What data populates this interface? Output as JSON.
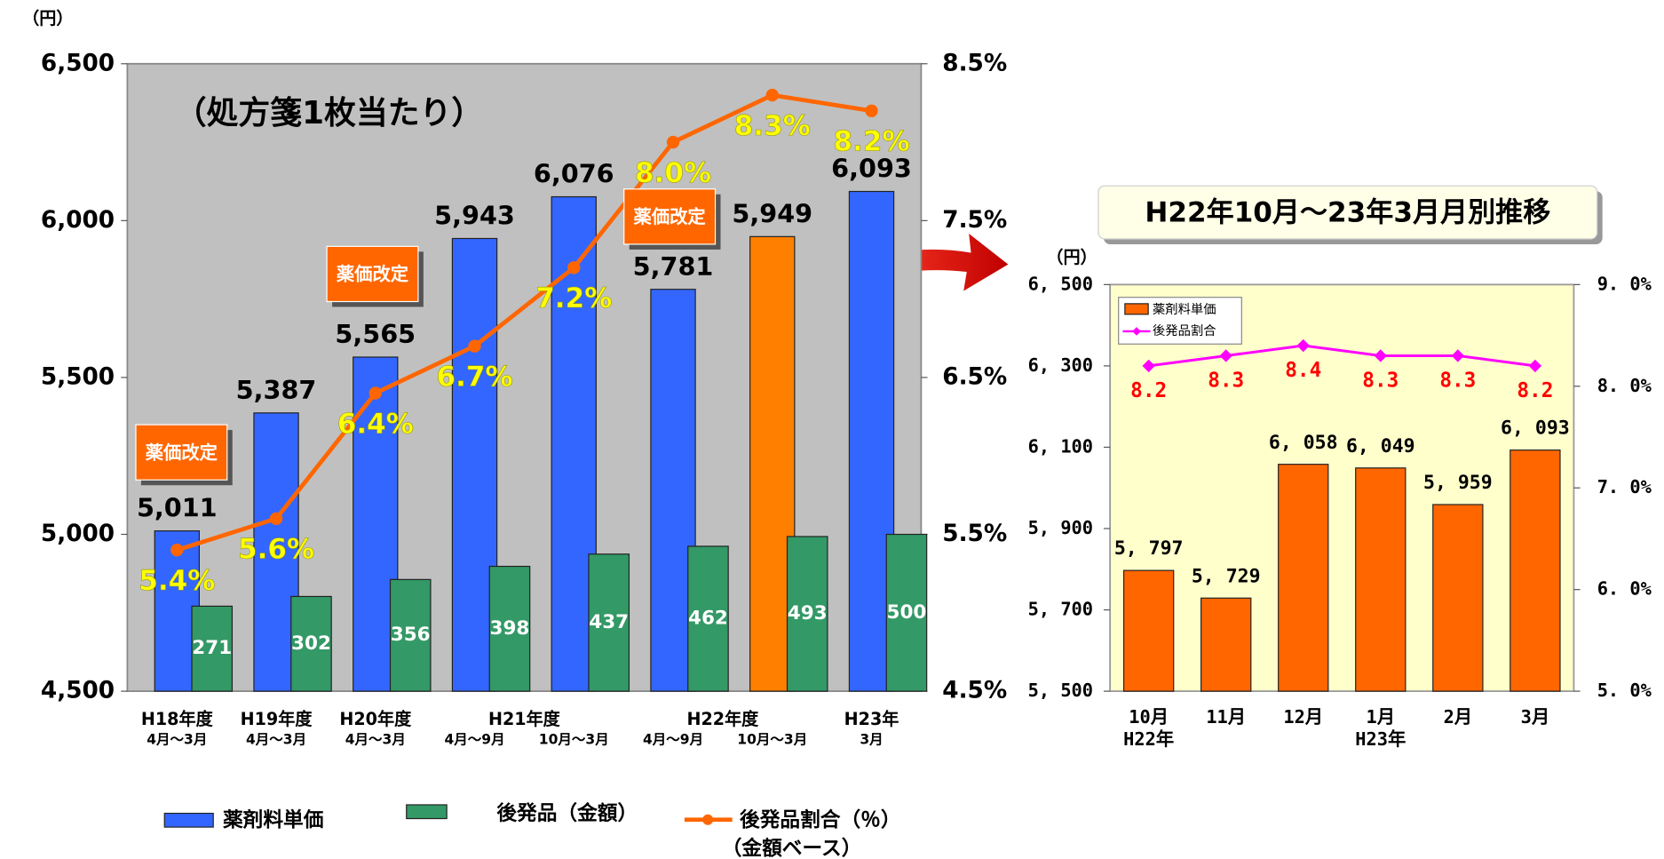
{
  "chart_data": [
    {
      "type": "bar",
      "ylabel": "（円）",
      "subtitle": "（処方箋1枚当たり）",
      "annotations": [
        "薬価改定",
        "薬価改定",
        "薬価改定"
      ],
      "categories": [
        "4月～3月",
        "4月～3月",
        "4月～3月",
        "4月～9月",
        "10月～3月",
        "4月～9月",
        "10月～3月",
        "3月"
      ],
      "category_groups": [
        "H18年度",
        "H19年度",
        "H20年度",
        "H21年度",
        null,
        "H22年度",
        null,
        "H23年"
      ],
      "series": [
        {
          "name": "薬剤料単価",
          "color": "#3366ff",
          "colors": [
            "#3366ff",
            "#3366ff",
            "#3366ff",
            "#3366ff",
            "#3366ff",
            "#3366ff",
            "#ff8000",
            "#3366ff"
          ],
          "values": [
            5011,
            5387,
            5565,
            5943,
            6076,
            5781,
            5949,
            6093
          ],
          "value_labels": [
            "5,011",
            "5,387",
            "5,565",
            "5,943",
            "6,076",
            "5,781",
            "5,949",
            "6,093"
          ]
        },
        {
          "name": "後発品（金額）",
          "color": "#339966",
          "values": [
            271,
            302,
            356,
            398,
            437,
            462,
            493,
            500
          ]
        },
        {
          "name": "後発品割合（％）",
          "type": "line",
          "axis": "y2",
          "color": "#ff6600",
          "label_color": "#ffff00",
          "values": [
            5.4,
            5.6,
            6.4,
            6.7,
            7.2,
            8.0,
            8.3,
            8.2
          ],
          "value_labels": [
            "5.4%",
            "5.6%",
            "6.4%",
            "6.7%",
            "7.2%",
            "8.0%",
            "8.3%",
            "8.2%"
          ]
        }
      ],
      "legend_note": "（金額ベース）",
      "legend": "bottom",
      "background": "#c0c0c0",
      "ylim": [
        4500,
        6500
      ],
      "yticks": [
        {
          "value": 4500,
          "label": "4,500"
        },
        {
          "value": 5000,
          "label": "5,000"
        },
        {
          "value": 5500,
          "label": "5,500"
        },
        {
          "value": 6000,
          "label": "6,000"
        },
        {
          "value": 6500,
          "label": "6,500"
        }
      ],
      "y2lim": [
        4.5,
        8.5
      ],
      "y2ticks": [
        {
          "value": 4.5,
          "label": "4.5%"
        },
        {
          "value": 5.5,
          "label": "5.5%"
        },
        {
          "value": 6.5,
          "label": "6.5%"
        },
        {
          "value": 7.5,
          "label": "7.5%"
        },
        {
          "value": 8.5,
          "label": "8.5%"
        }
      ]
    },
    {
      "type": "bar",
      "title": "H22年10月～23年3月月別推移",
      "ylabel": "（円）",
      "categories": [
        "10月",
        "11月",
        "12月",
        "1月",
        "2月",
        "3月"
      ],
      "category_groups": [
        "H22年",
        null,
        null,
        "H23年",
        null,
        null
      ],
      "series": [
        {
          "name": "薬剤料単価",
          "color": "#ff6600",
          "values": [
            5797,
            5729,
            6058,
            6049,
            5959,
            6093
          ],
          "value_labels": [
            "5, 797",
            "5, 729",
            "6, 058",
            "6, 049",
            "5, 959",
            "6, 093"
          ]
        },
        {
          "name": "後発品割合",
          "type": "line",
          "axis": "y2",
          "color": "#ff00ff",
          "label_color": "#ff0000",
          "values": [
            8.2,
            8.3,
            8.4,
            8.3,
            8.3,
            8.2
          ]
        }
      ],
      "legend": "upper left",
      "background": "#ffffcc",
      "ylim": [
        5500,
        6500
      ],
      "yticks": [
        {
          "value": 5500,
          "label": "5, 500"
        },
        {
          "value": 5700,
          "label": "5, 700"
        },
        {
          "value": 5900,
          "label": "5, 900"
        },
        {
          "value": 6100,
          "label": "6, 100"
        },
        {
          "value": 6300,
          "label": "6, 300"
        },
        {
          "value": 6500,
          "label": "6, 500"
        }
      ],
      "y2lim": [
        5,
        9
      ],
      "y2ticks": [
        {
          "value": 5,
          "label": "5. 0%"
        },
        {
          "value": 6,
          "label": "6. 0%"
        },
        {
          "value": 7,
          "label": "7. 0%"
        },
        {
          "value": 8,
          "label": "8. 0%"
        },
        {
          "value": 9,
          "label": "9. 0%"
        }
      ]
    }
  ]
}
